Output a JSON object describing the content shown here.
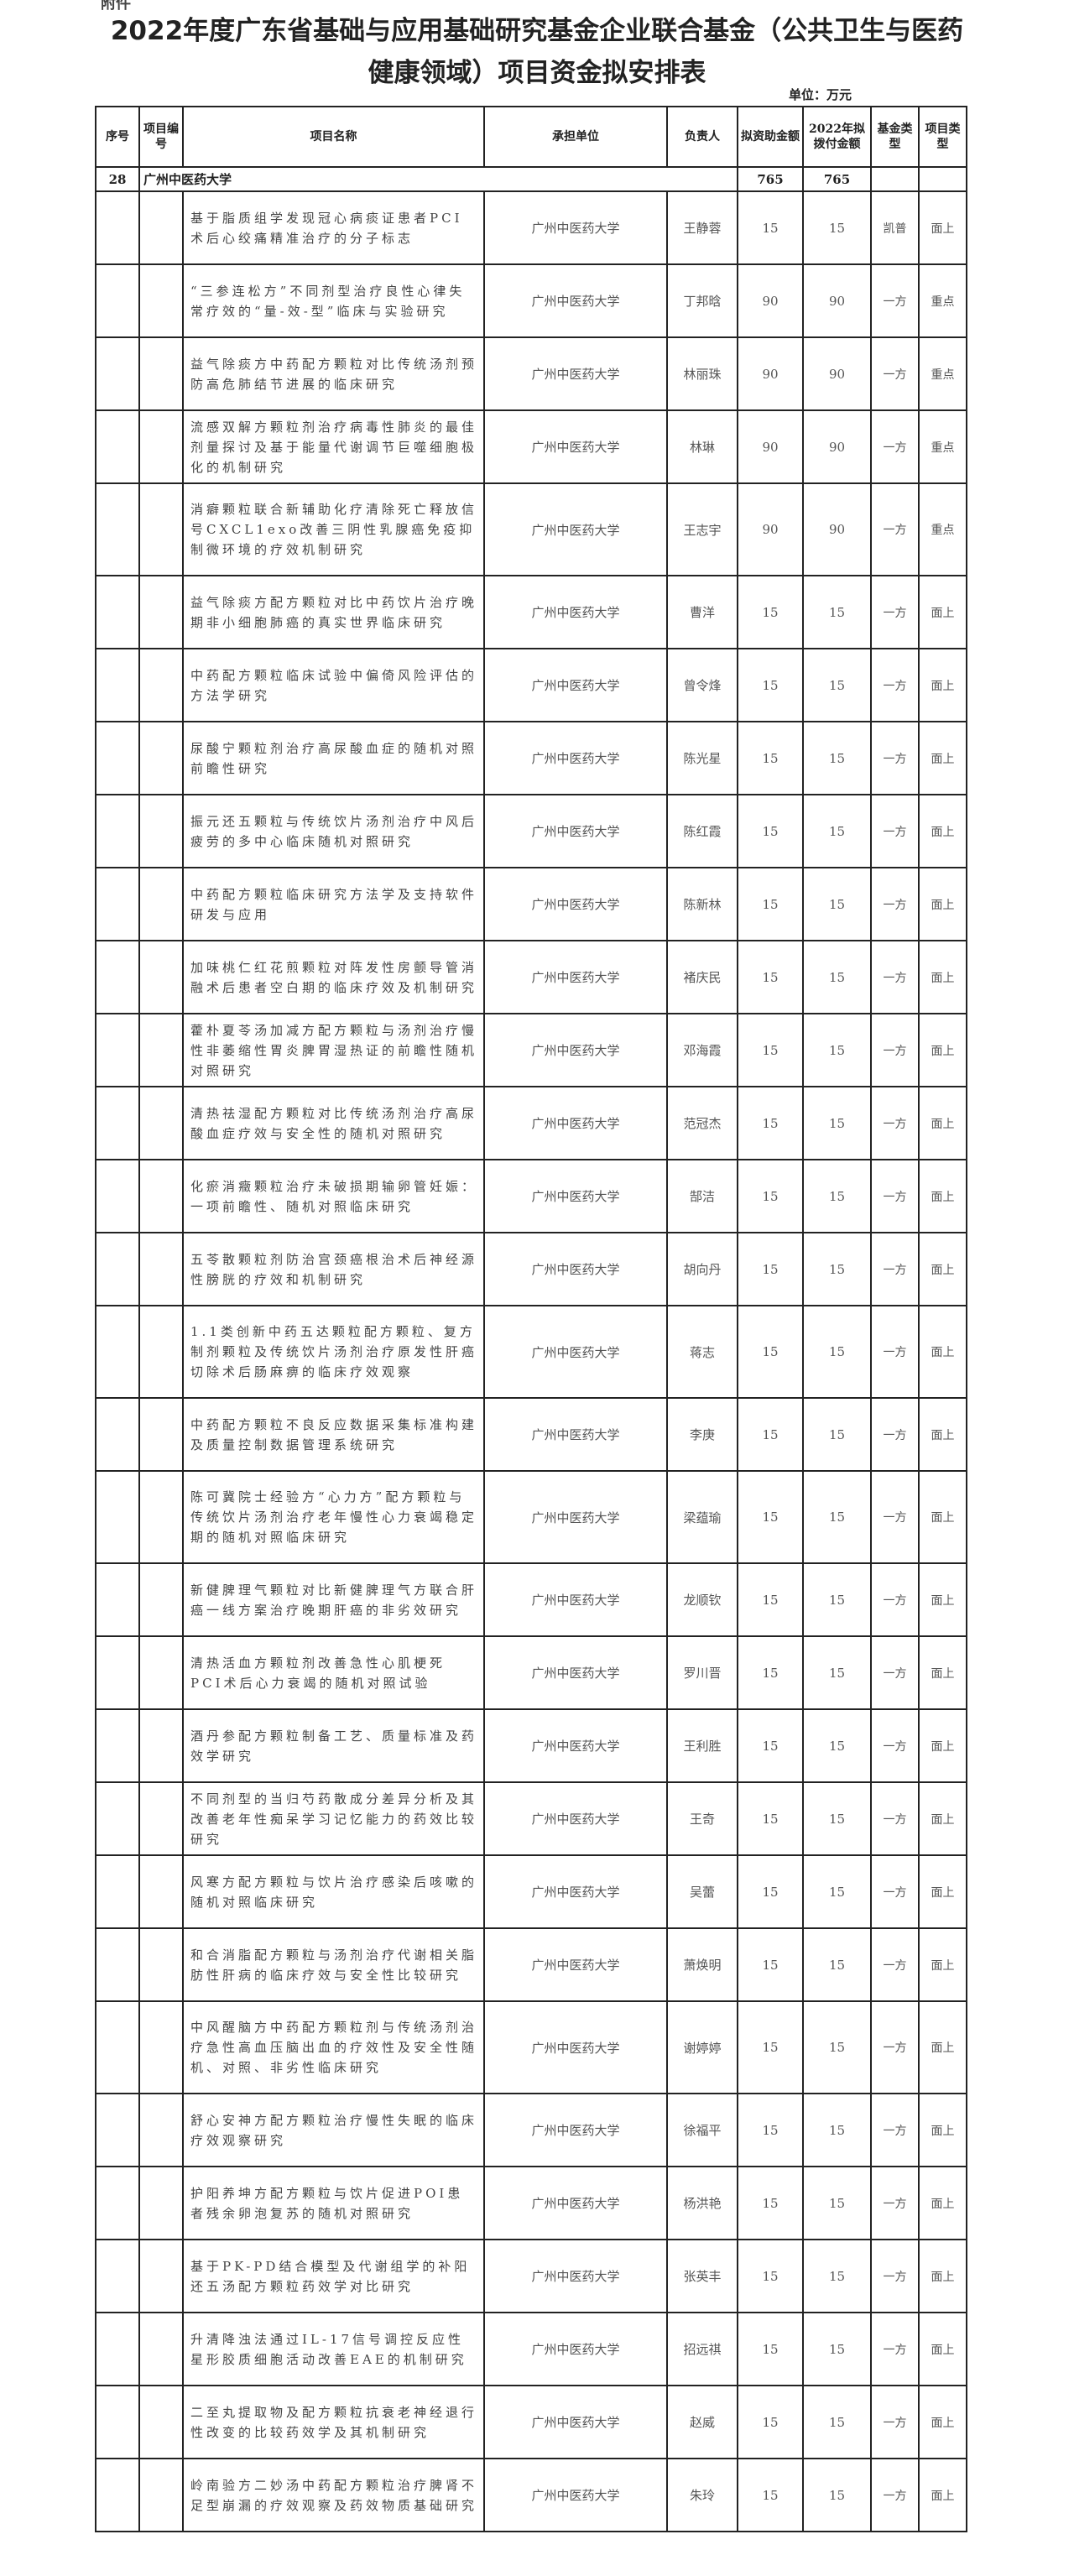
{
  "attachment_label": "附件",
  "title_line1": "2022年度广东省基础与应用基础研究基金企业联合基金（公共卫生与医药",
  "title_line2": "健康领域）项目资金拟安排表",
  "unit": "单位：万元",
  "headers": [
    "序号",
    "项目编号",
    "项目名称",
    "承担单位",
    "负责人",
    "拟资助金额",
    "2022年拟拨付金额",
    "基金类型",
    "项目类型"
  ],
  "summary": {
    "index": "28",
    "unit": "广州中医药大学",
    "amount": "765",
    "amount_2022": "765"
  },
  "rows": [
    {
      "name": "基于脂质组学发现冠心病痰证患者PCI术后心绞痛精准治疗的分子标志",
      "unit": "广州中医药大学",
      "leader": "王静蓉",
      "amount": "15",
      "amount_2022": "15",
      "fund": "凯普",
      "type": "面上"
    },
    {
      "name": "“三参连松方”不同剂型治疗良性心律失常疗效的“量-效-型”临床与实验研究",
      "unit": "广州中医药大学",
      "leader": "丁邦晗",
      "amount": "90",
      "amount_2022": "90",
      "fund": "一方",
      "type": "重点"
    },
    {
      "name": "益气除痰方中药配方颗粒对比传统汤剂预防高危肺结节进展的临床研究",
      "unit": "广州中医药大学",
      "leader": "林丽珠",
      "amount": "90",
      "amount_2022": "90",
      "fund": "一方",
      "type": "重点"
    },
    {
      "name": "流感双解方颗粒剂治疗病毒性肺炎的最佳剂量探讨及基于能量代谢调节巨噬细胞极化的机制研究",
      "unit": "广州中医药大学",
      "leader": "林琳",
      "amount": "90",
      "amount_2022": "90",
      "fund": "一方",
      "type": "重点"
    },
    {
      "name": "消癖颗粒联合新辅助化疗清除死亡释放信号CXCL1exo改善三阴性乳腺癌免疫抑制微环境的疗效机制研究",
      "unit": "广州中医药大学",
      "leader": "王志宇",
      "amount": "90",
      "amount_2022": "90",
      "fund": "一方",
      "type": "重点"
    },
    {
      "name": "益气除痰方配方颗粒对比中药饮片治疗晚期非小细胞肺癌的真实世界临床研究",
      "unit": "广州中医药大学",
      "leader": "曹洋",
      "amount": "15",
      "amount_2022": "15",
      "fund": "一方",
      "type": "面上"
    },
    {
      "name": "中药配方颗粒临床试验中偏倚风险评估的方法学研究",
      "unit": "广州中医药大学",
      "leader": "曾令烽",
      "amount": "15",
      "amount_2022": "15",
      "fund": "一方",
      "type": "面上"
    },
    {
      "name": "尿酸宁颗粒剂治疗高尿酸血症的随机对照前瞻性研究",
      "unit": "广州中医药大学",
      "leader": "陈光星",
      "amount": "15",
      "amount_2022": "15",
      "fund": "一方",
      "type": "面上"
    },
    {
      "name": "振元还五颗粒与传统饮片汤剂治疗中风后疲劳的多中心临床随机对照研究",
      "unit": "广州中医药大学",
      "leader": "陈红霞",
      "amount": "15",
      "amount_2022": "15",
      "fund": "一方",
      "type": "面上"
    },
    {
      "name": "中药配方颗粒临床研究方法学及支持软件研发与应用",
      "unit": "广州中医药大学",
      "leader": "陈新林",
      "amount": "15",
      "amount_2022": "15",
      "fund": "一方",
      "type": "面上"
    },
    {
      "name": "加味桃仁红花煎颗粒对阵发性房颤导管消融术后患者空白期的临床疗效及机制研究",
      "unit": "广州中医药大学",
      "leader": "褚庆民",
      "amount": "15",
      "amount_2022": "15",
      "fund": "一方",
      "type": "面上"
    },
    {
      "name": "藿朴夏苓汤加减方配方颗粒与汤剂治疗慢性非萎缩性胃炎脾胃湿热证的前瞻性随机对照研究",
      "unit": "广州中医药大学",
      "leader": "邓海霞",
      "amount": "15",
      "amount_2022": "15",
      "fund": "一方",
      "type": "面上"
    },
    {
      "name": "清热祛湿配方颗粒对比传统汤剂治疗高尿酸血症疗效与安全性的随机对照研究",
      "unit": "广州中医药大学",
      "leader": "范冠杰",
      "amount": "15",
      "amount_2022": "15",
      "fund": "一方",
      "type": "面上"
    },
    {
      "name": "化瘀消癥颗粒治疗未破损期输卵管妊娠：一项前瞻性、随机对照临床研究",
      "unit": "广州中医药大学",
      "leader": "郜洁",
      "amount": "15",
      "amount_2022": "15",
      "fund": "一方",
      "type": "面上"
    },
    {
      "name": "五苓散颗粒剂防治宫颈癌根治术后神经源性膀胱的疗效和机制研究",
      "unit": "广州中医药大学",
      "leader": "胡向丹",
      "amount": "15",
      "amount_2022": "15",
      "fund": "一方",
      "type": "面上"
    },
    {
      "name": "1.1类创新中药五达颗粒配方颗粒、复方制剂颗粒及传统饮片汤剂治疗原发性肝癌切除术后肠麻痹的临床疗效观察",
      "unit": "广州中医药大学",
      "leader": "蒋志",
      "amount": "15",
      "amount_2022": "15",
      "fund": "一方",
      "type": "面上"
    },
    {
      "name": "中药配方颗粒不良反应数据采集标准构建及质量控制数据管理系统研究",
      "unit": "广州中医药大学",
      "leader": "李庚",
      "amount": "15",
      "amount_2022": "15",
      "fund": "一方",
      "type": "面上"
    },
    {
      "name": "陈可冀院士经验方“心力方”配方颗粒与传统饮片汤剂治疗老年慢性心力衰竭稳定期的随机对照临床研究",
      "unit": "广州中医药大学",
      "leader": "梁蕴瑜",
      "amount": "15",
      "amount_2022": "15",
      "fund": "一方",
      "type": "面上"
    },
    {
      "name": "新健脾理气颗粒对比新健脾理气方联合肝癌一线方案治疗晚期肝癌的非劣效研究",
      "unit": "广州中医药大学",
      "leader": "龙顺钦",
      "amount": "15",
      "amount_2022": "15",
      "fund": "一方",
      "type": "面上"
    },
    {
      "name": "清热活血方颗粒剂改善急性心肌梗死PCI术后心力衰竭的随机对照试验",
      "unit": "广州中医药大学",
      "leader": "罗川晋",
      "amount": "15",
      "amount_2022": "15",
      "fund": "一方",
      "type": "面上"
    },
    {
      "name": "酒丹参配方颗粒制备工艺、质量标准及药效学研究",
      "unit": "广州中医药大学",
      "leader": "王利胜",
      "amount": "15",
      "amount_2022": "15",
      "fund": "一方",
      "type": "面上"
    },
    {
      "name": "不同剂型的当归芍药散成分差异分析及其改善老年性痴呆学习记忆能力的药效比较研究",
      "unit": "广州中医药大学",
      "leader": "王奇",
      "amount": "15",
      "amount_2022": "15",
      "fund": "一方",
      "type": "面上"
    },
    {
      "name": "风寒方配方颗粒与饮片治疗感染后咳嗽的随机对照临床研究",
      "unit": "广州中医药大学",
      "leader": "吴蕾",
      "amount": "15",
      "amount_2022": "15",
      "fund": "一方",
      "type": "面上"
    },
    {
      "name": "和合消脂配方颗粒与汤剂治疗代谢相关脂肪性肝病的临床疗效与安全性比较研究",
      "unit": "广州中医药大学",
      "leader": "萧焕明",
      "amount": "15",
      "amount_2022": "15",
      "fund": "一方",
      "type": "面上"
    },
    {
      "name": "中风醒脑方中药配方颗粒剂与传统汤剂治疗急性高血压脑出血的疗效性及安全性随机、对照、非劣性临床研究",
      "unit": "广州中医药大学",
      "leader": "谢婷婷",
      "amount": "15",
      "amount_2022": "15",
      "fund": "一方",
      "type": "面上"
    },
    {
      "name": "舒心安神方配方颗粒治疗慢性失眠的临床疗效观察研究",
      "unit": "广州中医药大学",
      "leader": "徐福平",
      "amount": "15",
      "amount_2022": "15",
      "fund": "一方",
      "type": "面上"
    },
    {
      "name": "护阳养坤方配方颗粒与饮片促进POI患者残余卵泡复苏的随机对照研究",
      "unit": "广州中医药大学",
      "leader": "杨洪艳",
      "amount": "15",
      "amount_2022": "15",
      "fund": "一方",
      "type": "面上"
    },
    {
      "name": "基于PK-PD结合模型及代谢组学的补阳还五汤配方颗粒药效学对比研究",
      "unit": "广州中医药大学",
      "leader": "张英丰",
      "amount": "15",
      "amount_2022": "15",
      "fund": "一方",
      "type": "面上"
    },
    {
      "name": "升清降浊法通过IL-17信号调控反应性星形胶质细胞活动改善EAE的机制研究",
      "unit": "广州中医药大学",
      "leader": "招远祺",
      "amount": "15",
      "amount_2022": "15",
      "fund": "一方",
      "type": "面上"
    },
    {
      "name": "二至丸提取物及配方颗粒抗衰老神经退行性改变的比较药效学及其机制研究",
      "unit": "广州中医药大学",
      "leader": "赵威",
      "amount": "15",
      "amount_2022": "15",
      "fund": "一方",
      "type": "面上"
    },
    {
      "name": "岭南验方二妙汤中药配方颗粒治疗脾肾不足型崩漏的疗效观察及药效物质基础研究",
      "unit": "广州中医药大学",
      "leader": "朱玲",
      "amount": "15",
      "amount_2022": "15",
      "fund": "一方",
      "type": "面上"
    }
  ]
}
